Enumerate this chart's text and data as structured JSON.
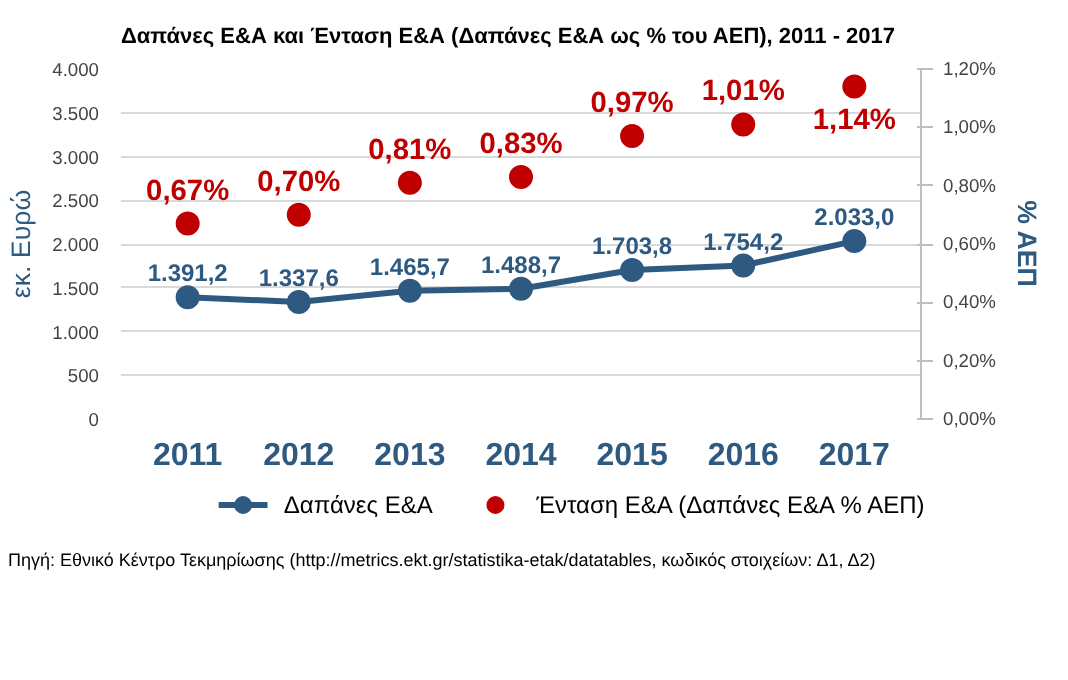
{
  "chart_data": {
    "type": "line",
    "title": "Δαπάνες Ε&Α και Ένταση Ε&Α (Δαπάνες Ε&Α ως % του ΑΕΠ), 2011 - 2017",
    "ylabel": "εκ. Ευρώ",
    "y2label": "% ΑΕΠ",
    "categories": [
      "2011",
      "2012",
      "2013",
      "2014",
      "2015",
      "2016",
      "2017"
    ],
    "series": [
      {
        "name": "Δαπάνες Ε&Α",
        "color": "#2e5a82",
        "values": [
          1391.2,
          1337.6,
          1465.7,
          1488.7,
          1703.8,
          1754.2,
          2033.0
        ],
        "value_labels": [
          "1.391,2",
          "1.337,6",
          "1.465,7",
          "1.488,7",
          "1.703,8",
          "1.754,2",
          "2.033,0"
        ]
      },
      {
        "name": "Ένταση Ε&Α (Δαπάνες Ε&Α % ΑΕΠ)",
        "type": "scatter",
        "axis": "y2",
        "color": "#c00000",
        "values": [
          0.67,
          0.7,
          0.81,
          0.83,
          0.97,
          1.01,
          1.14
        ],
        "value_labels": [
          "0,67%",
          "0,70%",
          "0,81%",
          "0,83%",
          "0,97%",
          "1,01%",
          "1,14%"
        ]
      }
    ],
    "ylim": [
      0,
      4000
    ],
    "yticks": [
      0,
      500,
      {
        "value": 1000,
        "label": "1.000"
      },
      {
        "value": 1500,
        "label": "1.500"
      },
      {
        "value": 2000,
        "label": "2.000"
      },
      {
        "value": 2500,
        "label": "2.500"
      },
      {
        "value": 3000,
        "label": "3.000"
      },
      {
        "value": 3500,
        "label": "3.500"
      },
      {
        "value": 4000,
        "label": "4.000"
      }
    ],
    "y2lim": [
      0,
      1.2
    ],
    "y2ticks": [
      {
        "value": 0,
        "label": "0,00%"
      },
      {
        "value": 0.2,
        "label": "0,20%"
      },
      {
        "value": 0.4,
        "label": "0,40%"
      },
      {
        "value": 0.6,
        "label": "0,60%"
      },
      {
        "value": 0.8,
        "label": "0,80%"
      },
      {
        "value": 1.0,
        "label": "1,00%"
      },
      {
        "value": 1.2,
        "label": "1,20%"
      }
    ],
    "grid": "y",
    "legend": "bottom",
    "marker": "circle",
    "line_style": "solid",
    "annotations": [
      "Πηγή: Εθνικό Κέντρο Τεκμηρίωσης (http://metrics.ekt.gr/statistika-etak/datatables, κωδικός στοιχείων: Δ1, Δ2)"
    ]
  }
}
